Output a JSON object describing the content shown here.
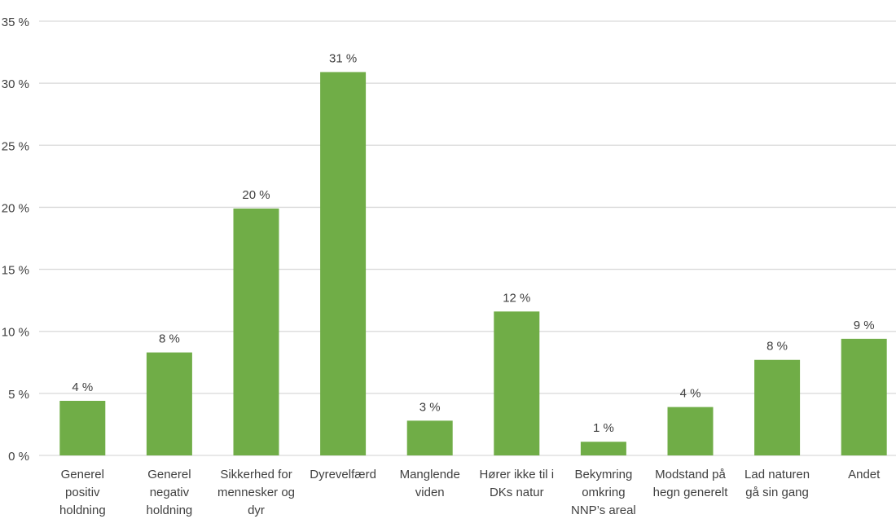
{
  "chart_data": {
    "type": "bar",
    "title": "",
    "xlabel": "",
    "ylabel": "",
    "ylim": [
      0,
      35
    ],
    "yticks": [
      0,
      5,
      10,
      15,
      20,
      25,
      30,
      35
    ],
    "ytick_labels": [
      "0 %",
      "5 %",
      "10 %",
      "15 %",
      "20 %",
      "25 %",
      "30 %",
      "35 %"
    ],
    "grid": true,
    "legend": "none",
    "bar_color": "#70AD47",
    "grid_color": "#D9D9D9",
    "categories": [
      [
        "Generel",
        "positiv",
        "holdning"
      ],
      [
        "Generel",
        "negativ",
        "holdning"
      ],
      [
        "Sikkerhed for",
        "mennesker og",
        "dyr"
      ],
      [
        "Dyrevelfærd"
      ],
      [
        "Manglende",
        "viden"
      ],
      [
        "Hører ikke til i",
        "DKs natur"
      ],
      [
        "Bekymring",
        "omkring",
        "NNP’s areal"
      ],
      [
        "Modstand på",
        "hegn generelt"
      ],
      [
        "Lad naturen",
        "gå sin gang"
      ],
      [
        "Andet"
      ]
    ],
    "values": [
      4.4,
      8.3,
      19.9,
      30.9,
      2.8,
      11.6,
      1.1,
      3.9,
      7.7,
      9.4
    ],
    "data_labels": [
      "4 %",
      "8 %",
      "20 %",
      "31 %",
      "3 %",
      "12 %",
      "1 %",
      "4 %",
      "8 %",
      "9 %"
    ]
  }
}
